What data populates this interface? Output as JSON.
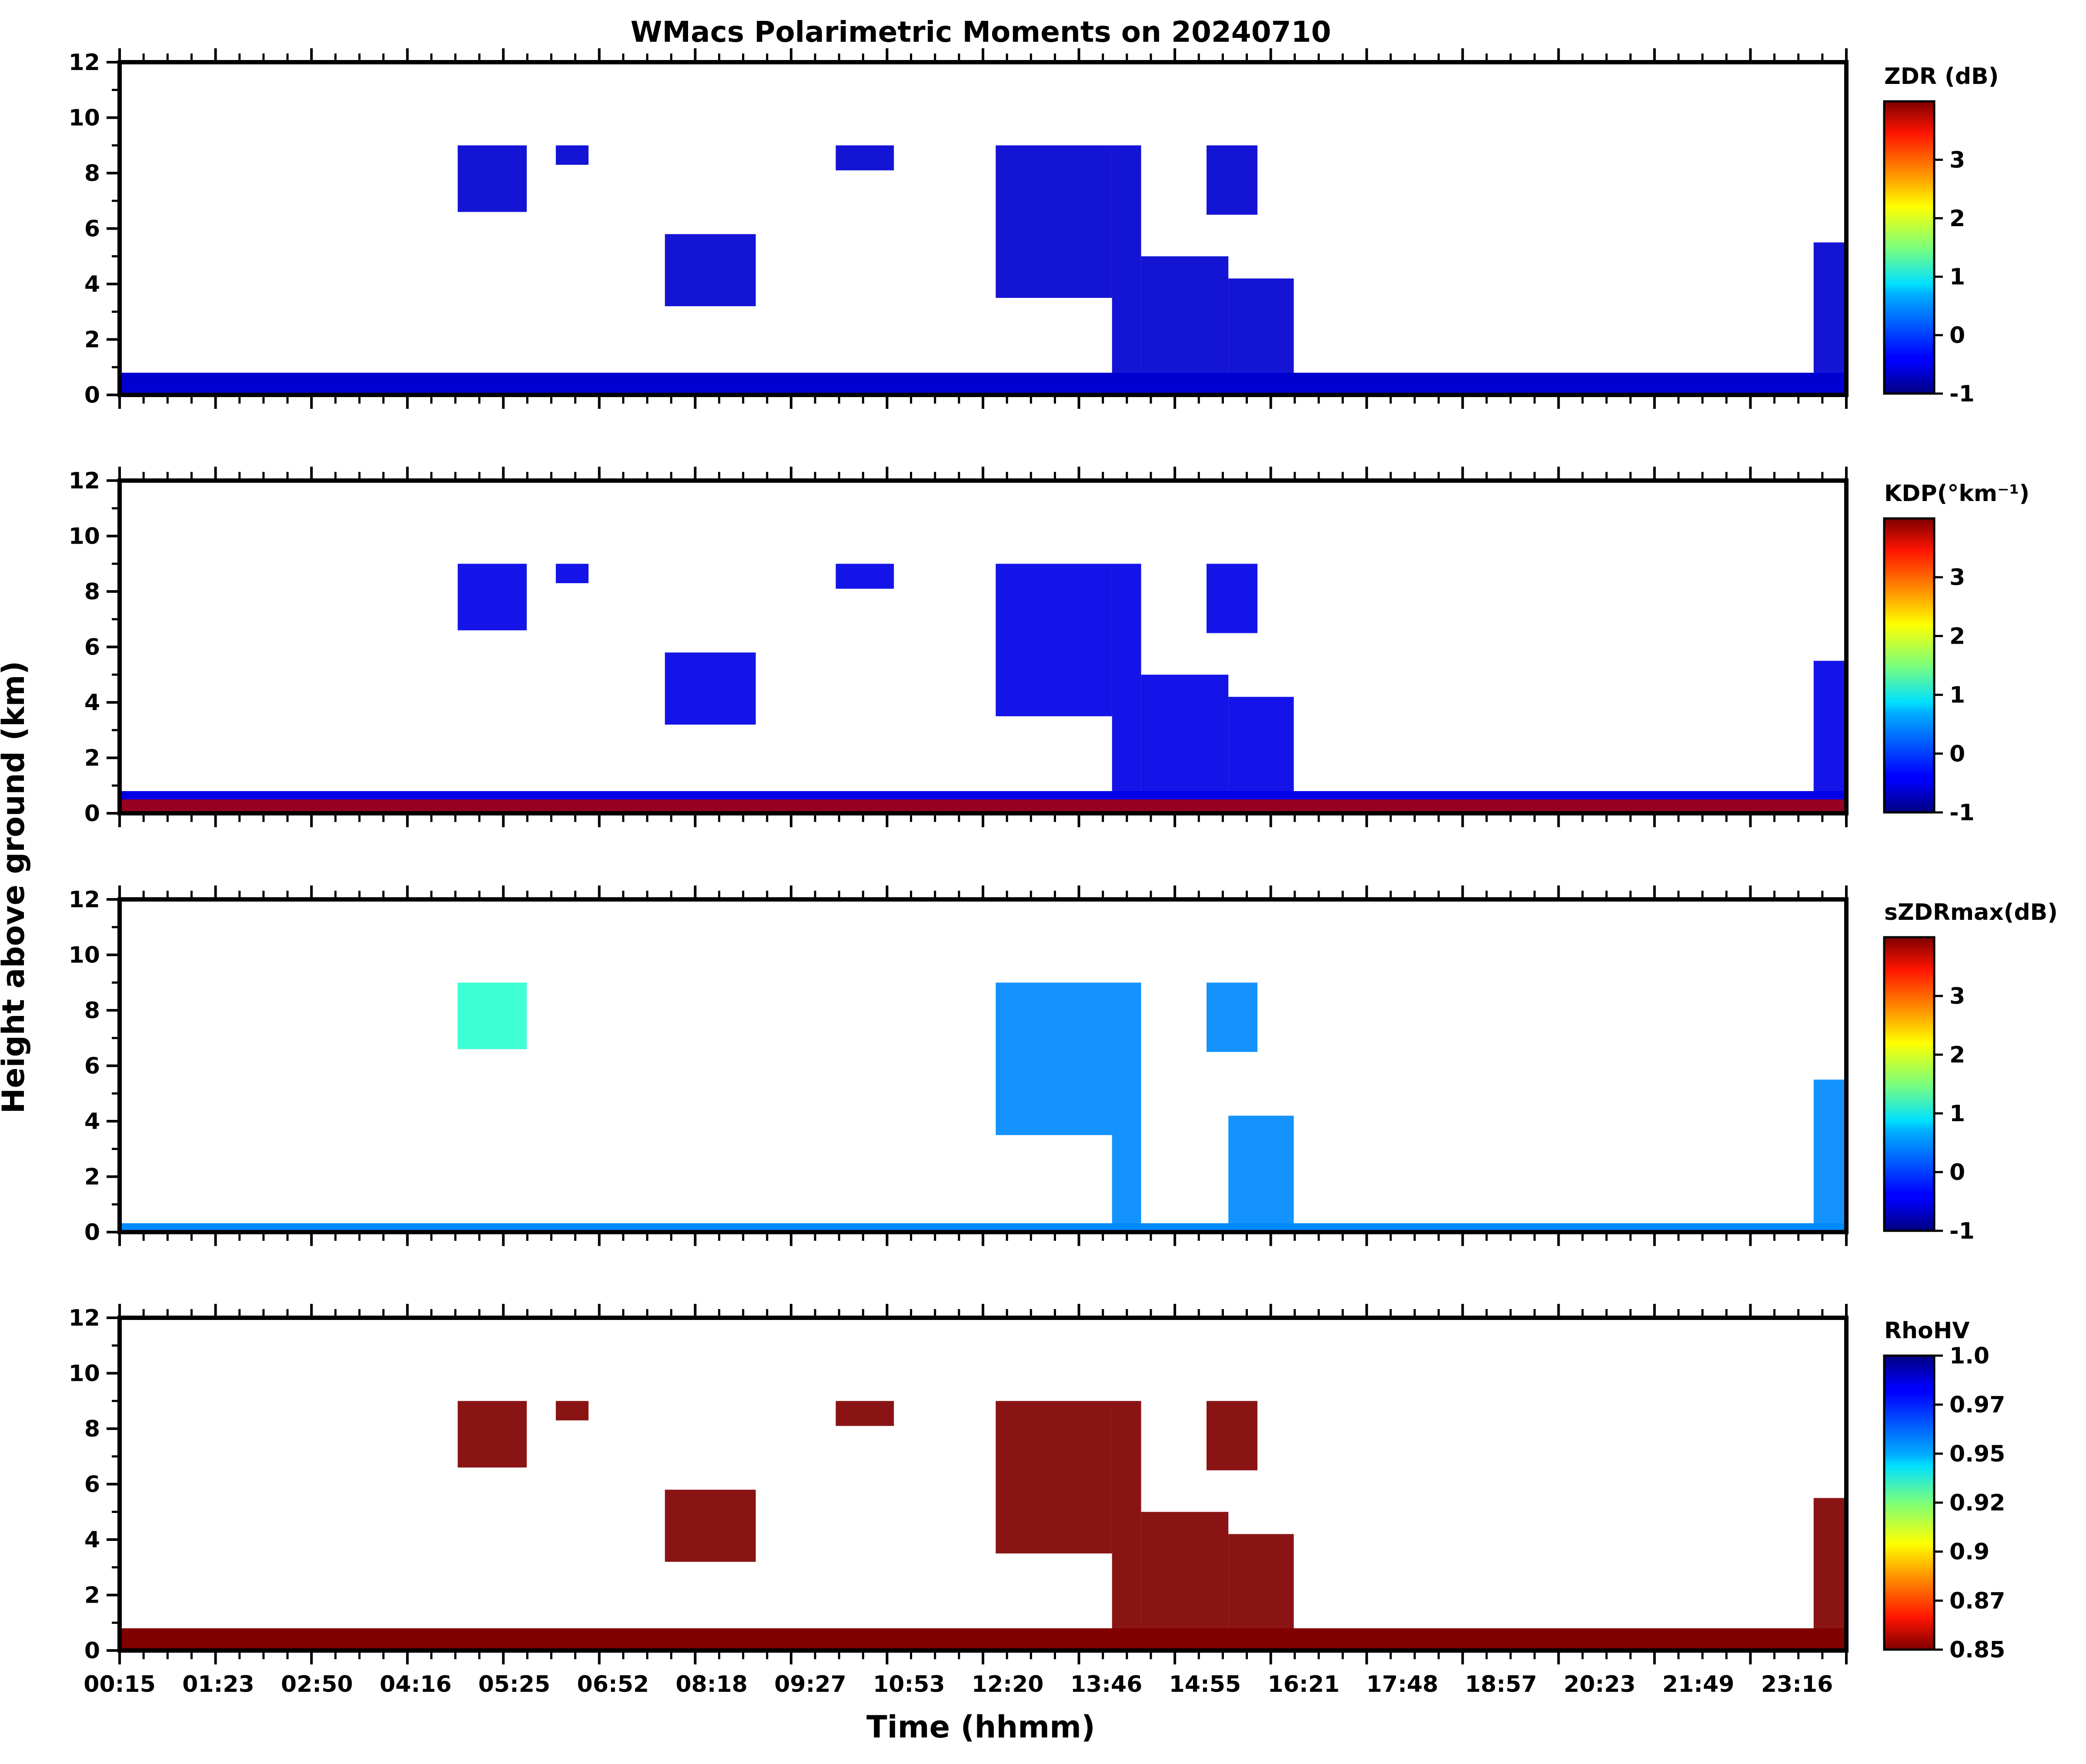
{
  "chart_data": {
    "type": "heatmap",
    "title": "WMacs Polarimetric Moments on 20240710",
    "xlabel": "Time (hhmm)",
    "ylabel": "Height above ground (km)",
    "x_tick_labels": [
      "00:15",
      "01:23",
      "02:50",
      "04:16",
      "05:25",
      "06:52",
      "08:18",
      "09:27",
      "10:53",
      "12:20",
      "13:46",
      "14:55",
      "16:21",
      "17:48",
      "18:57",
      "20:23",
      "21:49",
      "23:16"
    ],
    "y_ticks": [
      0,
      2,
      4,
      6,
      8,
      10,
      12
    ],
    "ylim": [
      0,
      12
    ],
    "xlim_hours": [
      0.25,
      24.0
    ],
    "panels": [
      {
        "name": "ZDR",
        "colorbar_label": "ZDR (dB)",
        "colormap": "jet",
        "colorbar_range": [
          -1,
          4
        ],
        "colorbar_ticks": [
          "-1",
          "0",
          "1",
          "2",
          "3"
        ],
        "colorbar_tick_values": [
          -1,
          0,
          1,
          2,
          3
        ],
        "typical_value": -0.6
      },
      {
        "name": "KDP",
        "colorbar_label": "KDP(°km⁻¹)",
        "colormap": "jet",
        "colorbar_range": [
          -1,
          4
        ],
        "colorbar_ticks": [
          "-1",
          "0",
          "1",
          "2",
          "3"
        ],
        "colorbar_tick_values": [
          -1,
          0,
          1,
          2,
          3
        ],
        "typical_value": -0.5
      },
      {
        "name": "sZDRmax",
        "colorbar_label": "sZDRmax(dB)",
        "colormap": "jet",
        "colorbar_range": [
          -1,
          4
        ],
        "colorbar_ticks": [
          "-1",
          "0",
          "1",
          "2",
          "3"
        ],
        "colorbar_tick_values": [
          -1,
          0,
          1,
          2,
          3
        ],
        "typical_value": 0.3
      },
      {
        "name": "RhoHV",
        "colorbar_label": "RhoHV",
        "colormap": "jet_r",
        "colorbar_range": [
          0.85,
          1.0
        ],
        "colorbar_ticks": [
          "1.0",
          "0.97",
          "0.95",
          "0.92",
          "0.9",
          "0.87",
          "0.85"
        ],
        "colorbar_tick_values": [
          1.0,
          0.975,
          0.95,
          0.925,
          0.9,
          0.875,
          0.85
        ],
        "typical_value": 0.85
      }
    ],
    "echo_regions": [
      {
        "t_start": 4.9,
        "t_end": 5.85,
        "h_bottom": 6.6,
        "h_top": 9.0
      },
      {
        "t_start": 6.25,
        "t_end": 6.7,
        "h_bottom": 8.3,
        "h_top": 9.0
      },
      {
        "t_start": 7.75,
        "t_end": 9.0,
        "h_bottom": 3.2,
        "h_top": 5.8
      },
      {
        "t_start": 10.1,
        "t_end": 10.9,
        "h_bottom": 8.1,
        "h_top": 9.0
      },
      {
        "t_start": 12.3,
        "t_end": 13.9,
        "h_bottom": 3.5,
        "h_top": 9.0
      },
      {
        "t_start": 13.9,
        "t_end": 14.3,
        "h_bottom": 0.0,
        "h_top": 9.0
      },
      {
        "t_start": 14.3,
        "t_end": 15.5,
        "h_bottom": 0.0,
        "h_top": 5.0
      },
      {
        "t_start": 15.2,
        "t_end": 15.9,
        "h_bottom": 6.5,
        "h_top": 9.0
      },
      {
        "t_start": 15.5,
        "t_end": 16.4,
        "h_bottom": 0.0,
        "h_top": 4.2
      },
      {
        "t_start": 23.55,
        "t_end": 24.0,
        "h_bottom": 0.2,
        "h_top": 5.5
      }
    ],
    "boundary_layer": {
      "t_start": 0.25,
      "t_end": 24.0,
      "h_top": 0.8
    }
  }
}
